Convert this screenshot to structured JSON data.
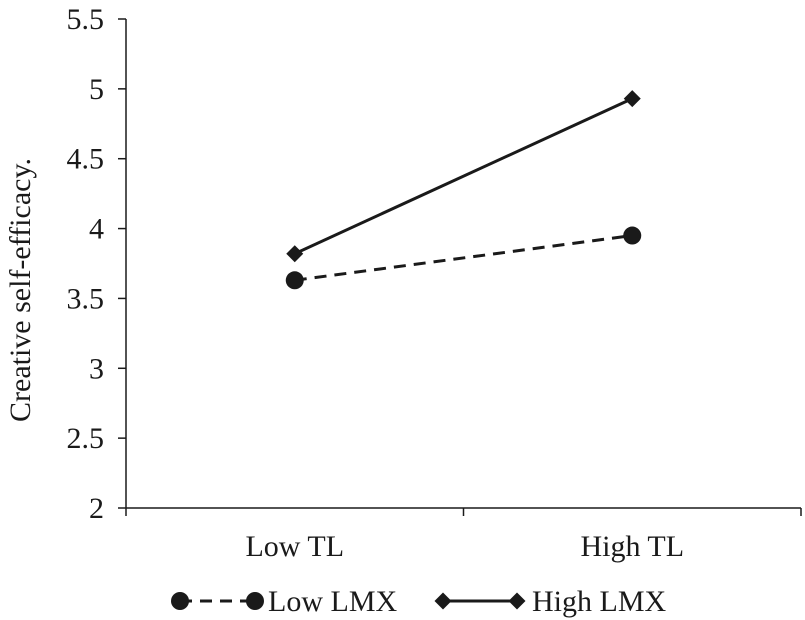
{
  "chart_data": {
    "type": "line",
    "title": "",
    "xlabel": "",
    "ylabel": "Creative self-efficacy.",
    "categories": [
      "Low TL",
      "High TL"
    ],
    "ylim": [
      2,
      5.5
    ],
    "yticks": [
      "2",
      "2.5",
      "3",
      "3.5",
      "4",
      "4.5",
      "5",
      "5.5"
    ],
    "grid": false,
    "legend_position": "bottom",
    "series": [
      {
        "name": "Low LMX",
        "values": [
          3.63,
          3.95
        ],
        "marker": "circle",
        "line_style": "dashed"
      },
      {
        "name": "High LMX",
        "values": [
          3.82,
          4.93
        ],
        "marker": "diamond",
        "line_style": "solid"
      }
    ]
  },
  "colors": {
    "ink": "#1a1a1a"
  }
}
